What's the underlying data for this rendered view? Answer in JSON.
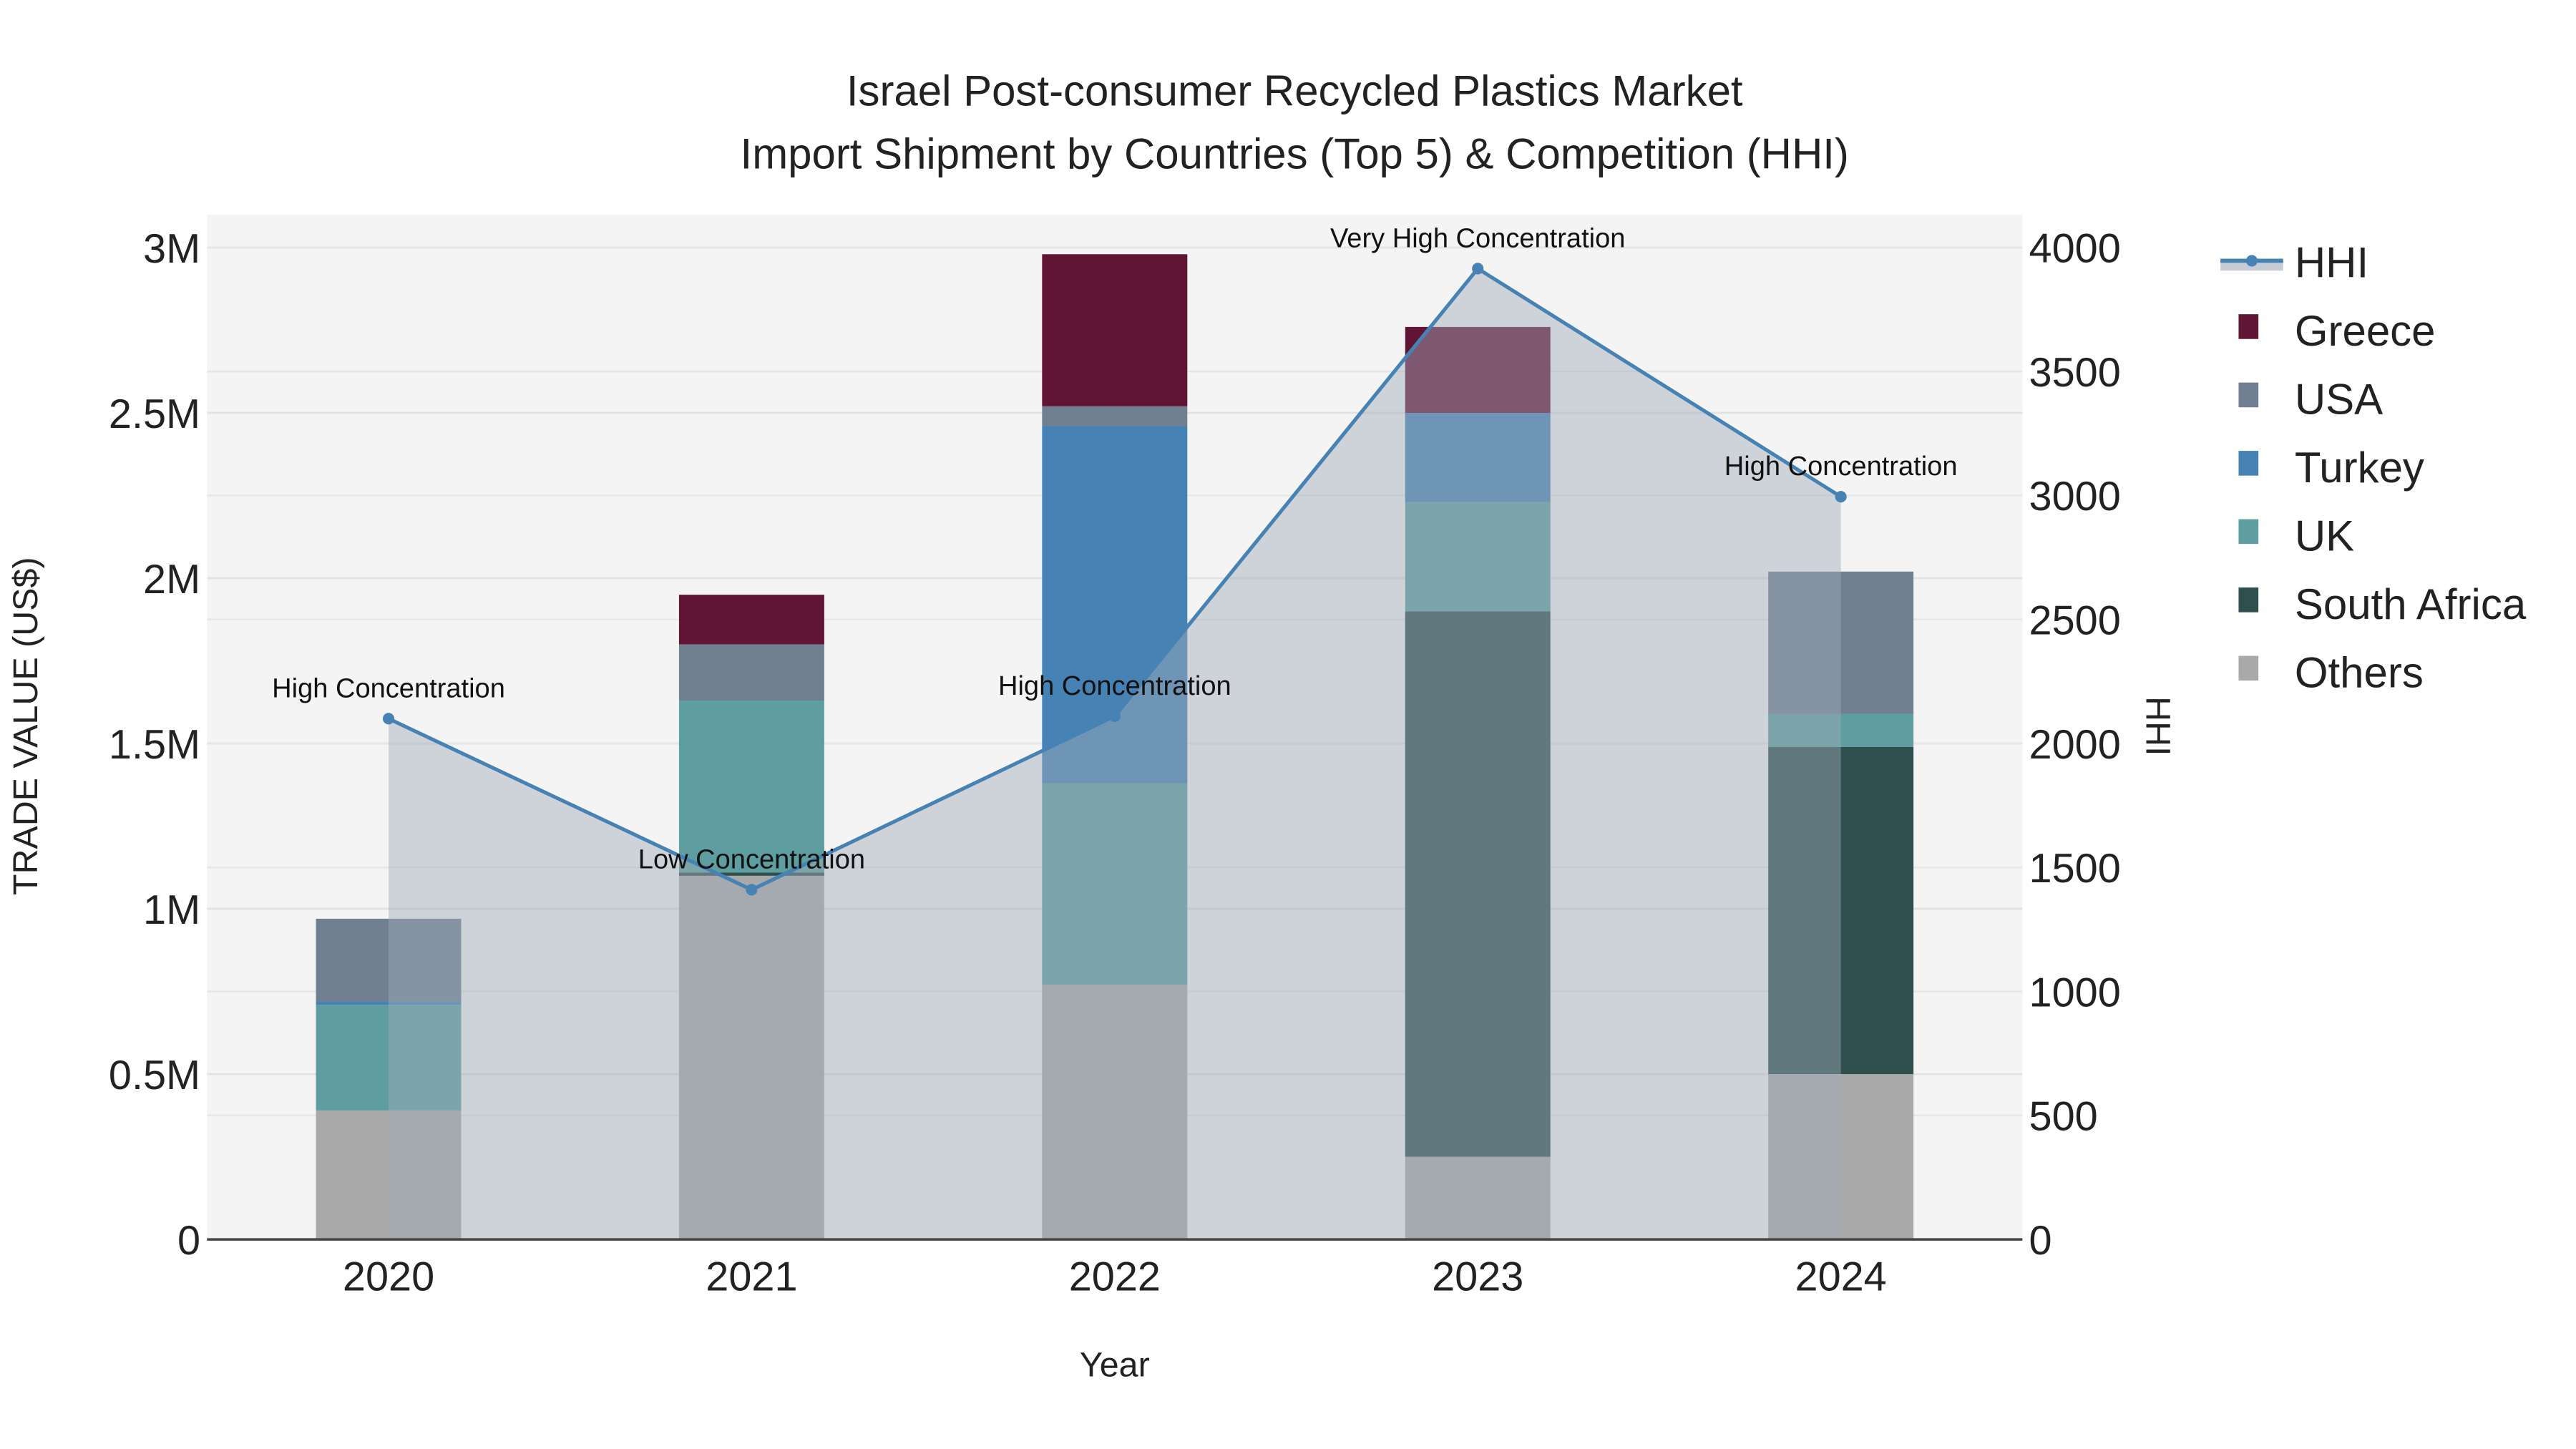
{
  "chart_data": {
    "type": "bar",
    "title_lines": [
      "Israel Post-consumer Recycled Plastics Market",
      "Import Shipment by Countries (Top 5) & Competition (HHI)"
    ],
    "xlabel": "Year",
    "ylabel": "TRADE VALUE (US$)",
    "y2label": "HHI",
    "categories": [
      "2020",
      "2021",
      "2022",
      "2023",
      "2024"
    ],
    "ylim": [
      0,
      3100000
    ],
    "y2lim": [
      0,
      4133
    ],
    "yticks": [
      0,
      500000,
      1000000,
      1500000,
      2000000,
      2500000,
      3000000
    ],
    "ytick_labels": [
      "0",
      "0.5M",
      "1M",
      "1.5M",
      "2M",
      "2.5M",
      "3M"
    ],
    "y2ticks": [
      0,
      500,
      1000,
      1500,
      2000,
      2500,
      3000,
      3500,
      4000
    ],
    "y2tick_labels": [
      "0",
      "500",
      "1000",
      "1500",
      "2000",
      "2500",
      "3000",
      "3500",
      "4000"
    ],
    "grid": true,
    "legend_placement": "right",
    "series": [
      {
        "name": "Others",
        "color": "#A9A9A9",
        "values": [
          390000,
          1100000,
          770000,
          250000,
          500000
        ]
      },
      {
        "name": "South Africa",
        "color": "#2F4F4F",
        "values": [
          0,
          10000,
          0,
          1650000,
          990000
        ]
      },
      {
        "name": "UK",
        "color": "#5F9EA0",
        "values": [
          320000,
          520000,
          610000,
          330000,
          100000
        ]
      },
      {
        "name": "Turkey",
        "color": "#4682B4",
        "values": [
          10000,
          0,
          1080000,
          270000,
          0
        ]
      },
      {
        "name": "USA",
        "color": "#708090",
        "values": [
          250000,
          170000,
          60000,
          0,
          430000
        ]
      },
      {
        "name": "Greece",
        "color": "#611535",
        "values": [
          0,
          150000,
          460000,
          260000,
          0
        ]
      }
    ],
    "hhi": {
      "name": "HHI",
      "color": "#4682B4",
      "values": [
        2100,
        1410,
        2110,
        3915,
        2995
      ],
      "annotations": [
        "High Concentration",
        "Low Concentration",
        "High Concentration",
        "Very High Concentration",
        "High Concentration"
      ]
    },
    "legend_order": [
      "HHI",
      "Greece",
      "USA",
      "Turkey",
      "UK",
      "South Africa",
      "Others"
    ]
  }
}
